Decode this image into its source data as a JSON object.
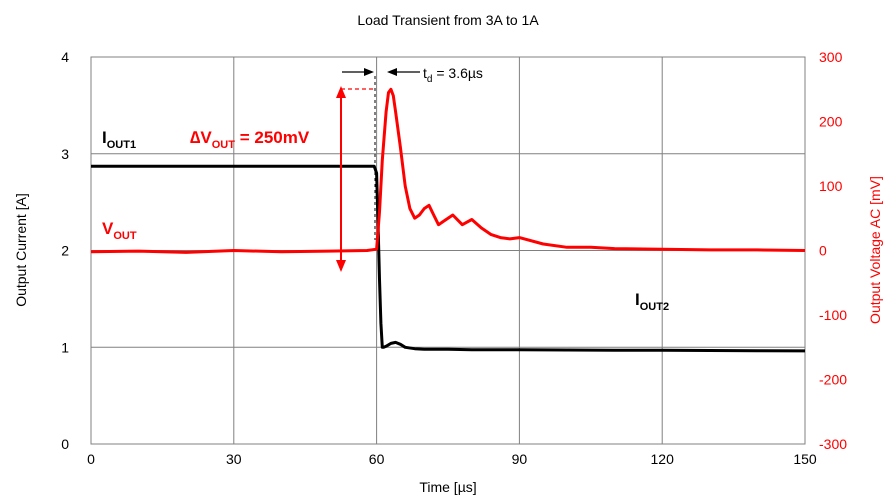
{
  "colors": {
    "current": "#000000",
    "voltage": "#ff0000",
    "grid": "#808080"
  },
  "chart_data": {
    "type": "line",
    "title": "Load Transient from 3A to 1A",
    "xlabel": "Time [µs]",
    "ylabel_left": "Output Current  [A]",
    "ylabel_right": "Output Voltage AC  [mV]",
    "xlim": [
      0,
      150
    ],
    "ylim_left": [
      0,
      4
    ],
    "ylim_right": [
      -300,
      300
    ],
    "xticks": [
      "0",
      "30",
      "60",
      "90",
      "120",
      "150"
    ],
    "yticks_left": [
      "0",
      "1",
      "2",
      "3",
      "4"
    ],
    "yticks_right": [
      "-300",
      "-200",
      "-100",
      "0",
      "100",
      "200",
      "300"
    ],
    "grid": true,
    "series": [
      {
        "name": "IOUT",
        "axis": "left",
        "x": [
          0,
          20,
          40,
          59.5,
          60.0,
          60.3,
          60.6,
          60.9,
          61.2,
          61.5,
          62,
          63,
          64,
          65,
          66,
          68,
          70,
          75,
          80,
          90,
          100,
          110,
          120,
          130,
          140,
          150
        ],
        "y": [
          2.87,
          2.87,
          2.87,
          2.87,
          2.8,
          2.3,
          1.7,
          1.25,
          1.0,
          1.0,
          1.01,
          1.04,
          1.05,
          1.03,
          1.0,
          0.985,
          0.98,
          0.98,
          0.975,
          0.975,
          0.972,
          0.97,
          0.968,
          0.966,
          0.964,
          0.962
        ]
      },
      {
        "name": "VOUT",
        "axis": "right",
        "x": [
          0,
          10,
          20,
          30,
          40,
          50,
          58,
          60,
          60.6,
          61.2,
          62,
          62.5,
          63,
          63.5,
          64,
          65,
          66,
          67,
          68,
          69,
          70,
          71,
          72,
          73,
          74,
          76,
          78,
          80,
          82,
          84,
          86,
          88,
          90,
          95,
          100,
          105,
          110,
          120,
          130,
          140,
          150
        ],
        "y": [
          -2,
          -1,
          -3,
          0,
          -2,
          -1,
          0,
          2,
          60,
          140,
          215,
          245,
          250,
          240,
          215,
          160,
          100,
          65,
          50,
          55,
          65,
          70,
          55,
          40,
          45,
          55,
          40,
          48,
          35,
          25,
          20,
          18,
          20,
          10,
          5,
          5,
          3,
          2,
          1,
          1,
          0
        ]
      }
    ],
    "annotations": {
      "iout1_main": "I",
      "iout1_sub": "OUT1",
      "iout2_main": "I",
      "iout2_sub": "OUT2",
      "vout_main": "V",
      "vout_sub": "OUT",
      "dv_main": "∆V",
      "dv_sub": "OUT",
      "dv_rest": " = 250mV",
      "td_main": "t",
      "td_sub": "d",
      "td_rest": " = 3.6µs"
    }
  }
}
